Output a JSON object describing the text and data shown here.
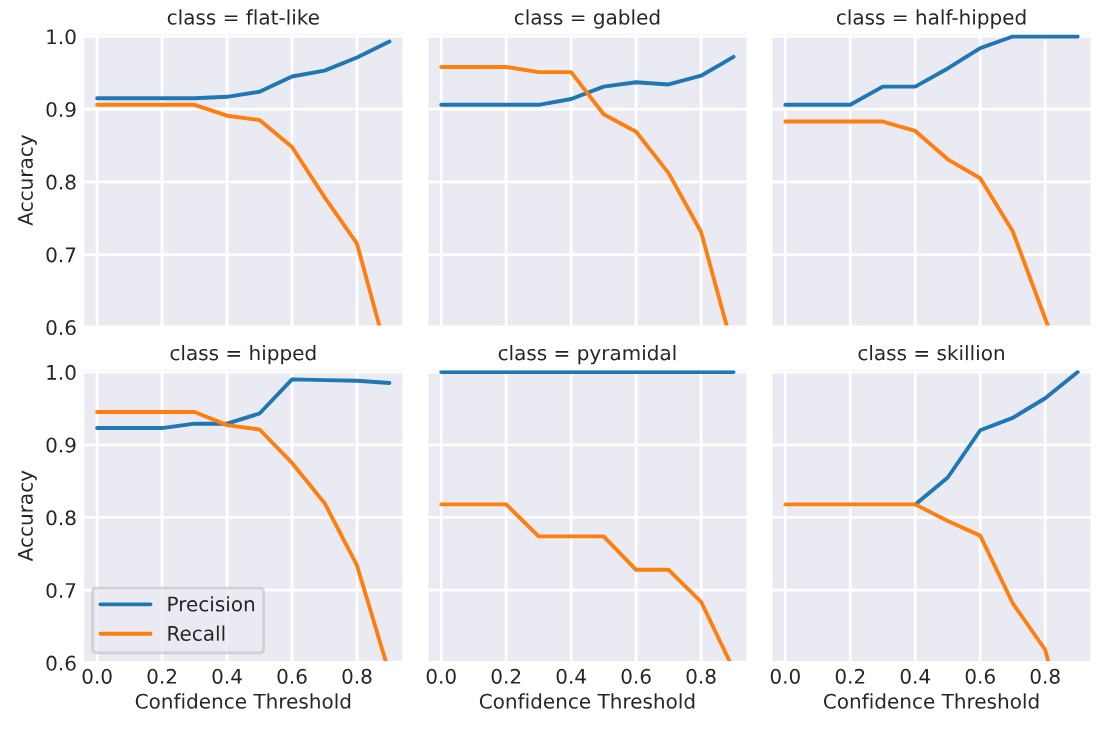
{
  "chart_data": [
    {
      "type": "line",
      "title": "class = flat-like",
      "ylabel": "Accuracy",
      "xlim": [
        -0.045,
        0.945
      ],
      "ylim": [
        0.6,
        1.005
      ],
      "xticks": [
        {
          "value": 0,
          "label": null
        },
        {
          "value": 0.2,
          "label": null
        },
        {
          "value": 0.4,
          "label": null
        },
        {
          "value": 0.6,
          "label": null
        },
        {
          "value": 0.8,
          "label": null
        }
      ],
      "yticks": [
        0.6,
        0.7,
        0.8,
        0.9,
        {
          "value": 1,
          "label": "1.0"
        }
      ],
      "tick_labels": "y",
      "grid": true,
      "legend": false,
      "series": [
        {
          "color": "#1f77b4",
          "x": [
            0,
            0.1,
            0.2,
            0.3,
            0.4,
            0.5,
            0.6,
            0.7,
            0.8,
            0.9
          ],
          "values": [
            0.915,
            0.915,
            0.915,
            0.915,
            0.917,
            0.924,
            0.945,
            0.953,
            0.971,
            0.993
          ]
        },
        {
          "color": "#ff7f0e",
          "x": [
            0,
            0.1,
            0.2,
            0.3,
            0.4,
            0.5,
            0.6,
            0.7,
            0.8,
            0.87
          ],
          "values": [
            0.906,
            0.906,
            0.906,
            0.906,
            0.891,
            0.885,
            0.848,
            0.779,
            0.715,
            0.6
          ]
        }
      ]
    },
    {
      "type": "line",
      "title": "class = gabled",
      "xlim": [
        -0.045,
        0.945
      ],
      "ylim": [
        0.6,
        1.005
      ],
      "xticks": [
        {
          "value": 0,
          "label": null
        },
        {
          "value": 0.2,
          "label": null
        },
        {
          "value": 0.4,
          "label": null
        },
        {
          "value": 0.6,
          "label": null
        },
        {
          "value": 0.8,
          "label": null
        }
      ],
      "yticks": [
        {
          "value": 0.6,
          "label": null
        },
        {
          "value": 0.7,
          "label": null
        },
        {
          "value": 0.8,
          "label": null
        },
        {
          "value": 0.9,
          "label": null
        },
        {
          "value": 1,
          "label": null
        }
      ],
      "tick_labels": false,
      "grid": true,
      "legend": false,
      "series": [
        {
          "color": "#1f77b4",
          "x": [
            0,
            0.1,
            0.2,
            0.3,
            0.4,
            0.5,
            0.6,
            0.7,
            0.8,
            0.9
          ],
          "values": [
            0.906,
            0.906,
            0.906,
            0.906,
            0.914,
            0.931,
            0.937,
            0.934,
            0.946,
            0.972
          ]
        },
        {
          "color": "#ff7f0e",
          "x": [
            0,
            0.1,
            0.2,
            0.3,
            0.4,
            0.5,
            0.6,
            0.7,
            0.8,
            0.88
          ],
          "values": [
            0.958,
            0.958,
            0.958,
            0.951,
            0.951,
            0.893,
            0.869,
            0.812,
            0.731,
            0.6
          ]
        }
      ]
    },
    {
      "type": "line",
      "title": "class = half-hipped",
      "xlim": [
        -0.045,
        0.945
      ],
      "ylim": [
        0.6,
        1.005
      ],
      "xticks": [
        {
          "value": 0,
          "label": null
        },
        {
          "value": 0.2,
          "label": null
        },
        {
          "value": 0.4,
          "label": null
        },
        {
          "value": 0.6,
          "label": null
        },
        {
          "value": 0.8,
          "label": null
        }
      ],
      "yticks": [
        {
          "value": 0.6,
          "label": null
        },
        {
          "value": 0.7,
          "label": null
        },
        {
          "value": 0.8,
          "label": null
        },
        {
          "value": 0.9,
          "label": null
        },
        {
          "value": 1,
          "label": null
        }
      ],
      "tick_labels": false,
      "grid": true,
      "legend": false,
      "series": [
        {
          "color": "#1f77b4",
          "x": [
            0,
            0.1,
            0.2,
            0.3,
            0.4,
            0.5,
            0.6,
            0.7,
            0.8,
            0.9
          ],
          "values": [
            0.906,
            0.906,
            0.906,
            0.931,
            0.931,
            0.956,
            0.984,
            1.0,
            1.0,
            1.0
          ]
        },
        {
          "color": "#ff7f0e",
          "x": [
            0,
            0.1,
            0.2,
            0.3,
            0.4,
            0.5,
            0.6,
            0.7,
            0.81
          ],
          "values": [
            0.883,
            0.883,
            0.883,
            0.883,
            0.87,
            0.831,
            0.805,
            0.732,
            0.6
          ]
        }
      ]
    },
    {
      "type": "line",
      "title": "class = hipped",
      "xlabel": "Confidence Threshold",
      "ylabel": "Accuracy",
      "xlim": [
        -0.045,
        0.945
      ],
      "ylim": [
        0.6,
        1.005
      ],
      "xticks": [
        {
          "value": 0,
          "label": "0.0"
        },
        0.2,
        0.4,
        0.6,
        0.8
      ],
      "yticks": [
        0.6,
        0.7,
        0.8,
        0.9,
        {
          "value": 1,
          "label": "1.0"
        }
      ],
      "grid": true,
      "legend": "bottom left",
      "series": [
        {
          "name": "Precision",
          "color": "#1f77b4",
          "x": [
            0,
            0.1,
            0.2,
            0.3,
            0.4,
            0.5,
            0.6,
            0.7,
            0.8,
            0.9
          ],
          "values": [
            0.923,
            0.923,
            0.923,
            0.929,
            0.929,
            0.943,
            0.99,
            0.989,
            0.988,
            0.985
          ]
        },
        {
          "name": "Recall",
          "color": "#ff7f0e",
          "x": [
            0,
            0.1,
            0.2,
            0.3,
            0.4,
            0.5,
            0.6,
            0.7,
            0.8,
            0.89
          ],
          "values": [
            0.945,
            0.945,
            0.945,
            0.945,
            0.927,
            0.921,
            0.875,
            0.82,
            0.734,
            0.6
          ]
        }
      ]
    },
    {
      "type": "line",
      "title": "class = pyramidal",
      "xlabel": "Confidence Threshold",
      "xlim": [
        -0.045,
        0.945
      ],
      "ylim": [
        0.6,
        1.005
      ],
      "xticks": [
        {
          "value": 0,
          "label": "0.0"
        },
        0.2,
        0.4,
        0.6,
        0.8
      ],
      "yticks": [
        {
          "value": 0.6,
          "label": null
        },
        {
          "value": 0.7,
          "label": null
        },
        {
          "value": 0.8,
          "label": null
        },
        {
          "value": 0.9,
          "label": null
        },
        {
          "value": 1,
          "label": null
        }
      ],
      "tick_labels": "x",
      "grid": true,
      "legend": false,
      "series": [
        {
          "color": "#1f77b4",
          "x": [
            0,
            0.1,
            0.2,
            0.3,
            0.4,
            0.5,
            0.6,
            0.7,
            0.8,
            0.9
          ],
          "values": [
            1.0,
            1.0,
            1.0,
            1.0,
            1.0,
            1.0,
            1.0,
            1.0,
            1.0,
            1.0
          ]
        },
        {
          "color": "#ff7f0e",
          "x": [
            0,
            0.1,
            0.2,
            0.3,
            0.4,
            0.5,
            0.6,
            0.7,
            0.8,
            0.89
          ],
          "values": [
            0.818,
            0.818,
            0.818,
            0.774,
            0.774,
            0.774,
            0.728,
            0.728,
            0.684,
            0.6
          ]
        }
      ]
    },
    {
      "type": "line",
      "title": "class = skillion",
      "xlabel": "Confidence Threshold",
      "xlim": [
        -0.045,
        0.945
      ],
      "ylim": [
        0.6,
        1.005
      ],
      "xticks": [
        {
          "value": 0,
          "label": "0.0"
        },
        0.2,
        0.4,
        0.6,
        0.8
      ],
      "yticks": [
        {
          "value": 0.6,
          "label": null
        },
        {
          "value": 0.7,
          "label": null
        },
        {
          "value": 0.8,
          "label": null
        },
        {
          "value": 0.9,
          "label": null
        },
        {
          "value": 1,
          "label": null
        }
      ],
      "tick_labels": "x",
      "grid": true,
      "legend": false,
      "series": [
        {
          "color": "#1f77b4",
          "x": [
            0.4,
            0.5,
            0.6,
            0.7,
            0.8,
            0.9
          ],
          "values": [
            0.818,
            0.855,
            0.92,
            0.937,
            0.964,
            1.0
          ]
        },
        {
          "color": "#ff7f0e",
          "x": [
            0,
            0.1,
            0.2,
            0.3,
            0.4,
            0.5,
            0.6,
            0.7,
            0.8,
            0.81
          ],
          "values": [
            0.818,
            0.818,
            0.818,
            0.818,
            0.818,
            0.795,
            0.775,
            0.682,
            0.618,
            0.6
          ]
        }
      ]
    }
  ]
}
